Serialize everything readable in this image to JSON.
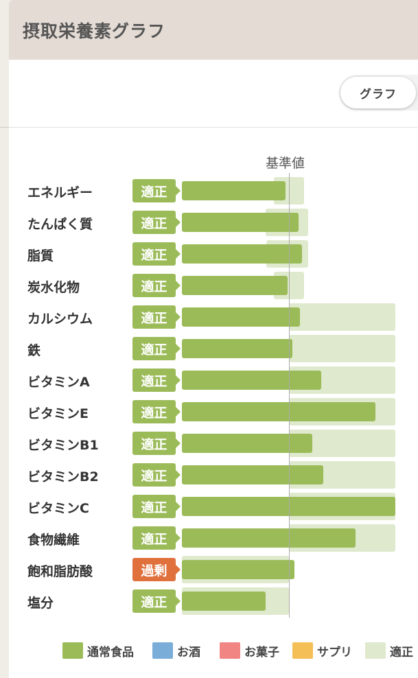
{
  "header": {
    "title": "摂取栄養素グラフ"
  },
  "toggle": {
    "graph_label": "グラフ"
  },
  "chart": {
    "baseline_label": "基準値"
  },
  "colors": {
    "normal_food": "#9bbb59",
    "alcohol": "#7aadd8",
    "sweets": "#f08583",
    "supplement": "#f4bf57",
    "appropriate_range": "#dfe9cd",
    "excess_badge": "#e0703c"
  },
  "chart_data": {
    "type": "bar",
    "orientation": "horizontal",
    "baseline_value": 100,
    "xlim": [
      0,
      200
    ],
    "categories": [
      "エネルギー",
      "たんぱく質",
      "脂質",
      "炭水化物",
      "カルシウム",
      "鉄",
      "ビタミンA",
      "ビタミンE",
      "ビタミンB1",
      "ビタミンB2",
      "ビタミンC",
      "食物繊維",
      "飽和脂肪酸",
      "塩分"
    ],
    "status": [
      "適正",
      "適正",
      "適正",
      "適正",
      "適正",
      "適正",
      "適正",
      "適正",
      "適正",
      "適正",
      "適正",
      "適正",
      "過剰",
      "適正"
    ],
    "status_type": [
      "ok",
      "ok",
      "ok",
      "ok",
      "ok",
      "ok",
      "ok",
      "ok",
      "ok",
      "ok",
      "ok",
      "ok",
      "over",
      "ok"
    ],
    "series": [
      {
        "name": "通常食品",
        "values": [
          97,
          109,
          112,
          99,
          110,
          103,
          130,
          181,
          122,
          132,
          200,
          162,
          105,
          78
        ]
      }
    ],
    "appropriate_range": [
      [
        86,
        114
      ],
      [
        78,
        118
      ],
      [
        79,
        118
      ],
      [
        86,
        114
      ],
      [
        100,
        200
      ],
      [
        100,
        200
      ],
      [
        100,
        200
      ],
      [
        100,
        200
      ],
      [
        100,
        200
      ],
      [
        100,
        200
      ],
      [
        100,
        200
      ],
      [
        100,
        200
      ],
      [
        0,
        100
      ],
      [
        0,
        100
      ]
    ]
  },
  "legend": [
    {
      "label": "通常食品",
      "color": "#9bbb59"
    },
    {
      "label": "お酒",
      "color": "#7aadd8"
    },
    {
      "label": "お菓子",
      "color": "#f08583"
    },
    {
      "label": "サプリ",
      "color": "#f4bf57"
    },
    {
      "label": "適正",
      "color": "#dfe9cd"
    }
  ]
}
